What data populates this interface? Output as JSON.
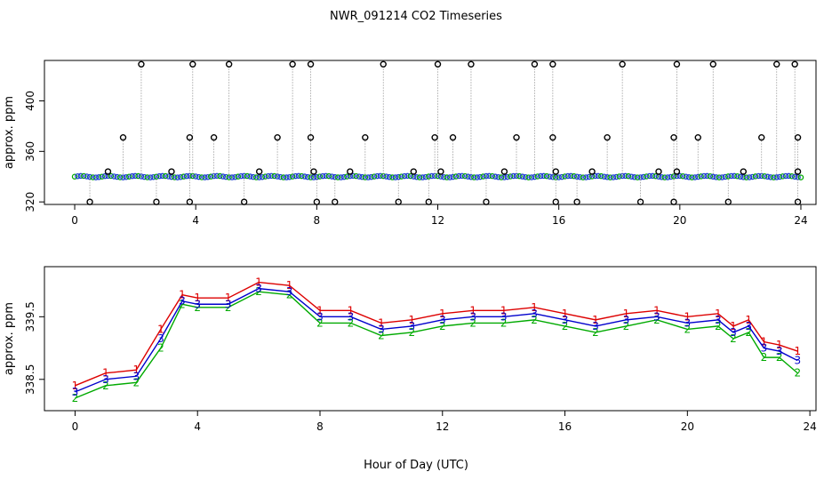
{
  "title": "NWR_091214  CO2 Timeseries",
  "xlabel": "Hour of Day (UTC)",
  "chart_data": [
    {
      "type": "scatter",
      "ylabel": "approx. ppm",
      "xlim": [
        -1,
        24.5
      ],
      "ylim": [
        318,
        432
      ],
      "xticks": [
        0,
        4,
        8,
        12,
        16,
        20,
        24
      ],
      "yticks": [
        320,
        360,
        400
      ],
      "baseline": 340,
      "spike_series": [
        {
          "x": 2.2,
          "y": 429
        },
        {
          "x": 3.9,
          "y": 429
        },
        {
          "x": 5.1,
          "y": 429
        },
        {
          "x": 7.2,
          "y": 429
        },
        {
          "x": 7.8,
          "y": 429
        },
        {
          "x": 10.2,
          "y": 429
        },
        {
          "x": 12.0,
          "y": 429
        },
        {
          "x": 13.1,
          "y": 429
        },
        {
          "x": 15.2,
          "y": 429
        },
        {
          "x": 15.8,
          "y": 429
        },
        {
          "x": 18.1,
          "y": 429
        },
        {
          "x": 19.9,
          "y": 429
        },
        {
          "x": 21.1,
          "y": 429
        },
        {
          "x": 23.2,
          "y": 429
        },
        {
          "x": 23.8,
          "y": 429
        },
        {
          "x": 1.6,
          "y": 371
        },
        {
          "x": 3.8,
          "y": 371
        },
        {
          "x": 4.6,
          "y": 371
        },
        {
          "x": 6.7,
          "y": 371
        },
        {
          "x": 7.8,
          "y": 371
        },
        {
          "x": 9.6,
          "y": 371
        },
        {
          "x": 11.9,
          "y": 371
        },
        {
          "x": 12.5,
          "y": 371
        },
        {
          "x": 14.6,
          "y": 371
        },
        {
          "x": 15.8,
          "y": 371
        },
        {
          "x": 17.6,
          "y": 371
        },
        {
          "x": 19.8,
          "y": 371
        },
        {
          "x": 20.6,
          "y": 371
        },
        {
          "x": 22.7,
          "y": 371
        },
        {
          "x": 23.9,
          "y": 371
        },
        {
          "x": 1.1,
          "y": 344
        },
        {
          "x": 3.2,
          "y": 344
        },
        {
          "x": 6.1,
          "y": 344
        },
        {
          "x": 7.9,
          "y": 344
        },
        {
          "x": 9.1,
          "y": 344
        },
        {
          "x": 11.2,
          "y": 344
        },
        {
          "x": 12.1,
          "y": 344
        },
        {
          "x": 14.2,
          "y": 344
        },
        {
          "x": 15.9,
          "y": 344
        },
        {
          "x": 17.1,
          "y": 344
        },
        {
          "x": 19.3,
          "y": 344
        },
        {
          "x": 19.9,
          "y": 344
        },
        {
          "x": 22.1,
          "y": 344
        },
        {
          "x": 23.9,
          "y": 344
        },
        {
          "x": 0.5,
          "y": 320
        },
        {
          "x": 2.7,
          "y": 320
        },
        {
          "x": 3.8,
          "y": 320
        },
        {
          "x": 5.6,
          "y": 320
        },
        {
          "x": 8.0,
          "y": 320
        },
        {
          "x": 8.6,
          "y": 320
        },
        {
          "x": 10.7,
          "y": 320
        },
        {
          "x": 11.7,
          "y": 320
        },
        {
          "x": 13.6,
          "y": 320
        },
        {
          "x": 15.9,
          "y": 320
        },
        {
          "x": 16.6,
          "y": 320
        },
        {
          "x": 18.7,
          "y": 320
        },
        {
          "x": 19.8,
          "y": 320
        },
        {
          "x": 21.6,
          "y": 320
        },
        {
          "x": 23.9,
          "y": 320
        }
      ]
    },
    {
      "type": "scatter",
      "ylabel": "approx. ppm",
      "xlim": [
        -1,
        24.2
      ],
      "ylim": [
        338.0,
        340.3
      ],
      "xticks": [
        0,
        4,
        8,
        12,
        16,
        20,
        24
      ],
      "yticks": [
        338.5,
        339.5
      ],
      "series": [
        {
          "name": "1",
          "color": "#dd0000",
          "x": [
            0,
            1,
            2,
            2.8,
            3.5,
            4,
            5,
            6,
            7,
            8,
            9,
            10,
            11,
            12,
            13,
            14,
            15,
            16,
            17,
            18,
            19,
            20,
            21,
            21.5,
            22,
            22.5,
            23,
            23.6
          ],
          "y": [
            338.4,
            338.6,
            338.65,
            339.3,
            339.85,
            339.8,
            339.8,
            340.05,
            340.0,
            339.6,
            339.6,
            339.4,
            339.45,
            339.55,
            339.6,
            339.6,
            339.65,
            339.55,
            339.45,
            339.55,
            339.6,
            339.5,
            339.55,
            339.35,
            339.45,
            339.1,
            339.05,
            338.95
          ]
        },
        {
          "name": "2",
          "color": "#00aa00",
          "x": [
            0,
            1,
            2,
            2.8,
            3.5,
            4,
            5,
            6,
            7,
            8,
            9,
            10,
            11,
            12,
            13,
            14,
            15,
            16,
            17,
            18,
            19,
            20,
            21,
            21.5,
            22,
            22.5,
            23,
            23.6
          ],
          "y": [
            338.2,
            338.4,
            338.45,
            339.0,
            339.7,
            339.65,
            339.65,
            339.9,
            339.85,
            339.4,
            339.4,
            339.2,
            339.25,
            339.35,
            339.4,
            339.4,
            339.45,
            339.35,
            339.25,
            339.35,
            339.45,
            339.3,
            339.35,
            339.15,
            339.25,
            338.85,
            338.85,
            338.6
          ]
        },
        {
          "name": "3",
          "color": "#0000cc",
          "x": [
            0,
            1,
            2,
            2.8,
            3.5,
            4,
            5,
            6,
            7,
            8,
            9,
            10,
            11,
            12,
            13,
            14,
            15,
            16,
            17,
            18,
            19,
            20,
            21,
            21.5,
            22,
            22.5,
            23,
            23.6
          ],
          "y": [
            338.3,
            338.5,
            338.55,
            339.15,
            339.75,
            339.7,
            339.7,
            339.95,
            339.9,
            339.5,
            339.5,
            339.3,
            339.35,
            339.45,
            339.5,
            339.5,
            339.55,
            339.45,
            339.35,
            339.45,
            339.5,
            339.4,
            339.45,
            339.25,
            339.35,
            339.0,
            338.95,
            338.8
          ]
        }
      ]
    }
  ]
}
